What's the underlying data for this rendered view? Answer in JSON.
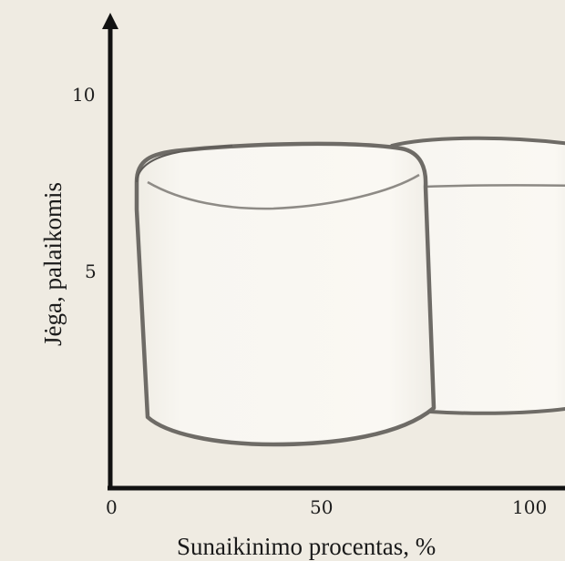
{
  "figure": {
    "y_axis_title": "Jėga, palaikomis",
    "x_axis_title": "Sunaikinimo procentas, %",
    "x_ticks": [
      "0",
      "50",
      "100"
    ],
    "y_ticks": [
      "10",
      "5"
    ]
  },
  "colors": {
    "background": "#efebe2",
    "axis": "#111111",
    "shape_fill": "#f8f6f0",
    "shape_outline": "#6e6b66"
  },
  "shapes": [
    {
      "name": "front-marshmallow",
      "description_hidden": true
    },
    {
      "name": "back-marshmallow",
      "description_hidden": true
    }
  ]
}
